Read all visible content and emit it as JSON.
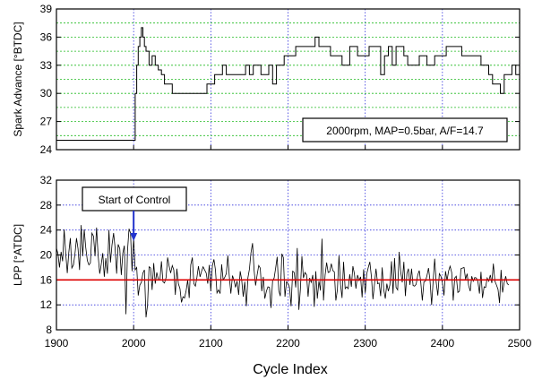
{
  "colors": {
    "frame": "#000000",
    "grid_vertical": "#3333dd",
    "grid_top_horizontal": "#22bb22",
    "grid_bottom_horizontal": "#3333dd",
    "trace": "#000000",
    "target_line": "#dd0000",
    "arrow": "#2233cc",
    "background": "#ffffff"
  },
  "chart_data": [
    {
      "type": "line",
      "ylabel": "Spark Advance [°BTDC]",
      "xlim": [
        1900,
        2500
      ],
      "ylim": [
        24,
        39
      ],
      "yticks": [
        24,
        27,
        30,
        33,
        36,
        39
      ],
      "grid": true,
      "annotation": "2000rpm, MAP=0.5bar, A/F=14.7",
      "series": [
        {
          "x": [
            1900,
            2000,
            2002,
            2004,
            2006,
            2008,
            2010,
            2012,
            2014,
            2016,
            2020,
            2024,
            2028,
            2032,
            2036,
            2040,
            2045,
            2050,
            2055,
            2060,
            2070,
            2080,
            2090,
            2095,
            2100,
            2105,
            2110,
            2115,
            2120,
            2125,
            2130,
            2135,
            2140,
            2145,
            2150,
            2155,
            2160,
            2165,
            2170,
            2175,
            2180,
            2185,
            2190,
            2195,
            2200,
            2205,
            2210,
            2215,
            2220,
            2225,
            2230,
            2235,
            2240,
            2245,
            2250,
            2255,
            2260,
            2265,
            2270,
            2275,
            2280,
            2285,
            2290,
            2295,
            2300,
            2305,
            2310,
            2315,
            2320,
            2325,
            2330,
            2335,
            2340,
            2345,
            2350,
            2355,
            2360,
            2365,
            2370,
            2375,
            2380,
            2385,
            2390,
            2395,
            2400,
            2405,
            2410,
            2415,
            2420,
            2425,
            2430,
            2435,
            2440,
            2445,
            2450,
            2455,
            2460,
            2465,
            2470,
            2475,
            2480,
            2485,
            2490,
            2495,
            2500
          ],
          "y": [
            25,
            25,
            30,
            33,
            35,
            36,
            37,
            36,
            35,
            34.5,
            33,
            34,
            33,
            32.5,
            32,
            31,
            31,
            30,
            30,
            30,
            30,
            30,
            30,
            31,
            31,
            32,
            32,
            33,
            32,
            32,
            32,
            32,
            32,
            33,
            32,
            33,
            33,
            32,
            32,
            33,
            31,
            33,
            33,
            34,
            34,
            34,
            35,
            35,
            35,
            35,
            35,
            36,
            35,
            35,
            35,
            34,
            34,
            34,
            33,
            33,
            35,
            35,
            34,
            34,
            34,
            35,
            35,
            35,
            32,
            34,
            35,
            33,
            35,
            35,
            34,
            33,
            33,
            33,
            34,
            34,
            33,
            33,
            34,
            34,
            34,
            35,
            35,
            35,
            35,
            34,
            34,
            34,
            34,
            34,
            33,
            33,
            32,
            31,
            31,
            30,
            32,
            32,
            33,
            32,
            32
          ]
        }
      ]
    },
    {
      "type": "line",
      "xlabel": "Cycle Index",
      "ylabel": "LPP [°ATDC]",
      "xlim": [
        1900,
        2500
      ],
      "xticks": [
        1900,
        2000,
        2100,
        2200,
        2300,
        2400,
        2500
      ],
      "ylim": [
        8,
        32
      ],
      "yticks": [
        8,
        12,
        16,
        20,
        24,
        28,
        32
      ],
      "grid": true,
      "annotation": "Start of Control",
      "annotation_x": 2000,
      "reference_line": 16,
      "series": [
        {
          "x_start": 1900,
          "x_step": 2,
          "y": [
            21.1,
            20.2,
            18.0,
            20.5,
            19.0,
            24.1,
            20.4,
            17.1,
            20.4,
            22.7,
            17.9,
            18.4,
            20.2,
            22.7,
            21.0,
            17.6,
            24.8,
            19.8,
            24.1,
            21.2,
            19.1,
            18.4,
            18.7,
            23.5,
            23.0,
            19.8,
            24.4,
            20.0,
            17.0,
            18.5,
            20.3,
            16.5,
            19.5,
            17.0,
            24.0,
            18.8,
            21.6,
            23.5,
            21.1,
            17.0,
            21.7,
            21.0,
            16.8,
            20.3,
            21.5,
            10.5,
            20.6,
            24.2,
            23.5,
            17.4,
            22.7,
            17.6,
            18.0,
            13.5,
            15.2,
            15.6,
            17.1,
            17.6,
            10.0,
            12.0,
            18.1,
            17.9,
            14.4,
            18.7,
            15.4,
            17.2,
            16.1,
            16.0,
            19.0,
            15.7,
            15.5,
            16.4,
            19.6,
            18.2,
            17.1,
            18.3,
            17.6,
            13.6,
            17.8,
            15.4,
            14.6,
            12.4,
            13.3,
            13.1,
            14.3,
            16.0,
            13.1,
            18.4,
            19.6,
            15.4,
            15.0,
            16.4,
            18.2,
            16.5,
            17.4,
            18.1,
            17.6,
            17.1,
            15.4,
            18.4,
            14.2,
            18.3,
            19.3,
            17.6,
            13.9,
            14.4,
            13.8,
            18.5,
            16.0,
            16.4,
            17.0,
            19.9,
            16.5,
            13.8,
            16.7,
            16.0,
            14.8,
            15.8,
            13.6,
            17.4,
            16.0,
            13.3,
            15.7,
            11.8,
            16.3,
            17.7,
            20.3,
            21.9,
            17.6,
            15.1,
            16.8,
            18.3,
            17.9,
            14.2,
            16.5,
            13.0,
            14.2,
            14.9,
            14.8,
            11.5,
            15.9,
            16.3,
            17.9,
            19.7,
            14.3,
            13.4,
            20.2,
            19.6,
            13.3,
            15.7,
            15.4,
            14.8,
            11.8,
            17.4,
            17.2,
            14.8,
            21.1,
            11.2,
            14.5,
            19.8,
            16.3,
            17.2,
            16.8,
            13.3,
            16.3,
            15.6,
            16.8,
            11.7,
            17.4,
            13.0,
            15.8,
            14.3,
            22.6,
            12.7,
            16.8,
            18.8,
            17.2,
            17.3,
            18.6,
            17.5,
            17.3,
            12.7,
            14.4,
            19.9,
            15.3,
            13.1,
            18.9,
            14.6,
            14.9,
            14.6,
            16.9,
            14.9,
            18.2,
            17.0,
            14.6,
            16.8,
            15.9,
            16.5,
            13.2,
            17.7,
            13.9,
            17.0,
            18.0,
            18.9,
            16.5,
            12.9,
            15.3,
            17.8,
            15.4,
            15.5,
            13.4,
            18.0,
            14.5,
            13.0,
            15.4,
            14.2,
            15.2,
            19.0,
            13.8,
            19.5,
            14.8,
            14.4,
            20.5,
            17.3,
            15.6,
            18.9,
            13.4,
            17.0,
            17.8,
            15.2,
            17.8,
            15.1,
            15.0,
            15.3,
            16.8,
            17.5,
            15.6,
            12.7,
            15.7,
            15.8,
            16.7,
            17.9,
            15.9,
            12.0,
            15.8,
            19.4,
            15.6,
            13.5,
            17.0,
            16.6,
            15.6,
            13.5,
            17.4,
            15.9,
            17.4,
            18.2,
            17.2,
            12.7,
            16.3,
            16.6,
            14.0,
            14.2,
            17.8,
            17.9,
            18.0,
            16.1,
            17.0,
            15.1,
            14.2,
            16.6,
            15.8,
            16.4,
            16.3,
            15.7,
            13.8,
            17.3,
            13.1,
            14.9,
            14.8,
            16.3,
            15.8,
            16.8,
            15.5,
            18.6,
            15.8,
            15.2,
            14.5,
            12.3,
            17.6,
            14.0,
            15.6,
            16.6,
            15.4,
            15.2
          ]
        }
      ]
    }
  ]
}
